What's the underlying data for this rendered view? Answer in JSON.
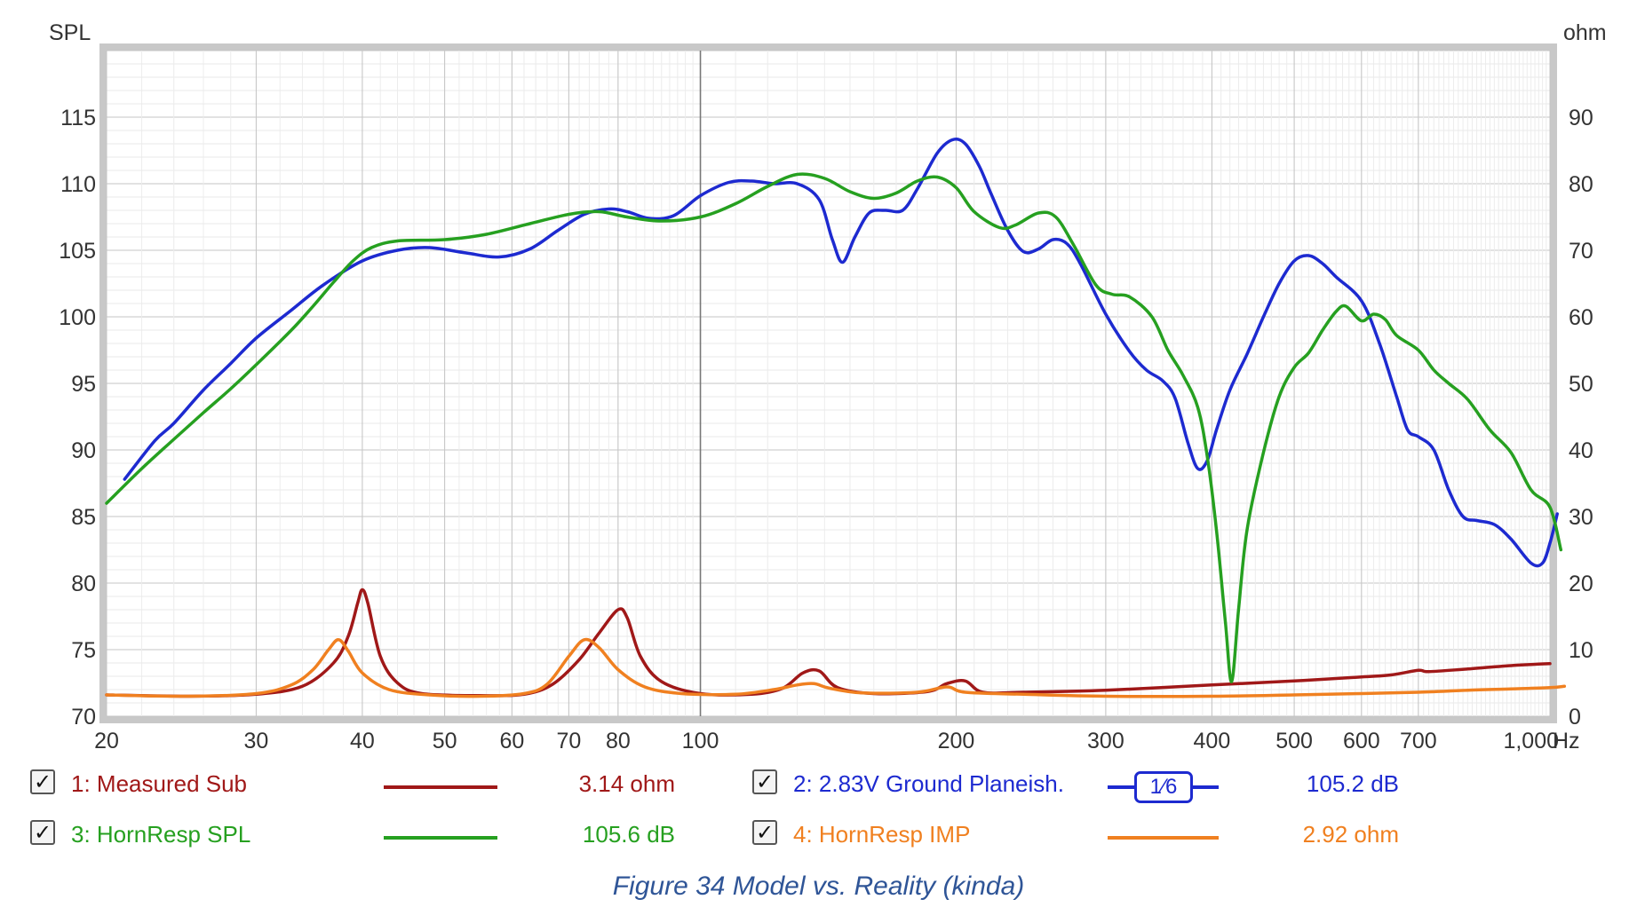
{
  "chart_data": {
    "type": "line",
    "x_axis": {
      "unit_label": "Hz",
      "scale": "log",
      "range": [
        20,
        1000
      ],
      "ticks": [
        {
          "value": 20,
          "label": "20"
        },
        {
          "value": 30,
          "label": "30"
        },
        {
          "value": 40,
          "label": "40"
        },
        {
          "value": 50,
          "label": "50"
        },
        {
          "value": 60,
          "label": "60"
        },
        {
          "value": 70,
          "label": "70"
        },
        {
          "value": 80,
          "label": "80"
        },
        {
          "value": 100,
          "label": "100"
        },
        {
          "value": 200,
          "label": "200"
        },
        {
          "value": 300,
          "label": "300"
        },
        {
          "value": 400,
          "label": "400"
        },
        {
          "value": 500,
          "label": "500"
        },
        {
          "value": 600,
          "label": "600"
        },
        {
          "value": 700,
          "label": "700"
        },
        {
          "value": 1000,
          "label": "1,000"
        }
      ]
    },
    "y_left": {
      "label": "SPL",
      "range": [
        70,
        120
      ],
      "ticks": [
        {
          "value": 70,
          "label": "70"
        },
        {
          "value": 75,
          "label": "75"
        },
        {
          "value": 80,
          "label": "80"
        },
        {
          "value": 85,
          "label": "85"
        },
        {
          "value": 90,
          "label": "90"
        },
        {
          "value": 95,
          "label": "95"
        },
        {
          "value": 100,
          "label": "100"
        },
        {
          "value": 105,
          "label": "105"
        },
        {
          "value": 110,
          "label": "110"
        },
        {
          "value": 115,
          "label": "115"
        }
      ]
    },
    "y_right": {
      "label": "ohm",
      "range": [
        0,
        100
      ],
      "ticks": [
        {
          "value": 0,
          "label": "0"
        },
        {
          "value": 10,
          "label": "10"
        },
        {
          "value": 20,
          "label": "20"
        },
        {
          "value": 30,
          "label": "30"
        },
        {
          "value": 40,
          "label": "40"
        },
        {
          "value": 50,
          "label": "50"
        },
        {
          "value": 60,
          "label": "60"
        },
        {
          "value": 70,
          "label": "70"
        },
        {
          "value": 80,
          "label": "80"
        },
        {
          "value": 90,
          "label": "90"
        }
      ]
    },
    "grid": true,
    "series": [
      {
        "name": "1: Measured Sub",
        "axis": "right",
        "color": "#a01818",
        "points": [
          [
            20,
            3.2
          ],
          [
            25,
            3.0
          ],
          [
            30,
            3.3
          ],
          [
            34,
            4.5
          ],
          [
            37,
            8
          ],
          [
            38.5,
            12
          ],
          [
            39.5,
            17
          ],
          [
            40,
            19
          ],
          [
            40.6,
            17
          ],
          [
            42,
            9
          ],
          [
            44,
            5
          ],
          [
            47,
            3.4
          ],
          [
            55,
            3.1
          ],
          [
            62,
            3.3
          ],
          [
            67,
            4.8
          ],
          [
            72,
            8.5
          ],
          [
            76,
            12.5
          ],
          [
            80,
            16
          ],
          [
            82,
            14.8
          ],
          [
            85,
            9
          ],
          [
            90,
            5.2
          ],
          [
            100,
            3.4
          ],
          [
            115,
            3.3
          ],
          [
            125,
            4.2
          ],
          [
            132,
            6.5
          ],
          [
            138,
            6.8
          ],
          [
            145,
            4.3
          ],
          [
            160,
            3.4
          ],
          [
            185,
            3.7
          ],
          [
            195,
            4.9
          ],
          [
            205,
            5.3
          ],
          [
            215,
            3.6
          ],
          [
            240,
            3.6
          ],
          [
            300,
            3.9
          ],
          [
            400,
            4.7
          ],
          [
            500,
            5.3
          ],
          [
            600,
            5.9
          ],
          [
            650,
            6.2
          ],
          [
            700,
            6.9
          ],
          [
            720,
            6.7
          ],
          [
            800,
            7.1
          ],
          [
            900,
            7.6
          ],
          [
            1000,
            7.9
          ]
        ]
      },
      {
        "name": "2: 2.83V Ground Planeish.",
        "axis": "left",
        "color": "#1d2ad0",
        "points": [
          [
            21,
            87.8
          ],
          [
            22.8,
            90.7
          ],
          [
            24,
            92
          ],
          [
            26,
            94.5
          ],
          [
            28,
            96.5
          ],
          [
            30,
            98.4
          ],
          [
            33,
            100.5
          ],
          [
            36,
            102.4
          ],
          [
            40,
            104.2
          ],
          [
            44,
            105
          ],
          [
            48,
            105.2
          ],
          [
            53,
            104.8
          ],
          [
            58,
            104.5
          ],
          [
            63,
            105.1
          ],
          [
            68,
            106.5
          ],
          [
            73,
            107.7
          ],
          [
            78,
            108.1
          ],
          [
            82,
            107.9
          ],
          [
            87,
            107.4
          ],
          [
            93,
            107.6
          ],
          [
            100,
            109.1
          ],
          [
            108,
            110.1
          ],
          [
            115,
            110.2
          ],
          [
            122,
            110
          ],
          [
            130,
            110
          ],
          [
            138,
            108.8
          ],
          [
            143,
            105.8
          ],
          [
            147,
            104.1
          ],
          [
            152,
            106
          ],
          [
            158,
            107.8
          ],
          [
            165,
            108
          ],
          [
            173,
            108
          ],
          [
            180,
            109.6
          ],
          [
            190,
            112.3
          ],
          [
            198,
            113.3
          ],
          [
            205,
            113
          ],
          [
            213,
            111.3
          ],
          [
            220,
            109.2
          ],
          [
            230,
            106.5
          ],
          [
            240,
            104.9
          ],
          [
            250,
            105.1
          ],
          [
            260,
            105.8
          ],
          [
            270,
            105.5
          ],
          [
            280,
            104
          ],
          [
            300,
            100.2
          ],
          [
            320,
            97.4
          ],
          [
            335,
            96
          ],
          [
            350,
            95.2
          ],
          [
            362,
            93.9
          ],
          [
            375,
            90.5
          ],
          [
            385,
            88.6
          ],
          [
            395,
            89.2
          ],
          [
            405,
            91.5
          ],
          [
            420,
            94.5
          ],
          [
            440,
            97.2
          ],
          [
            460,
            100
          ],
          [
            480,
            102.5
          ],
          [
            500,
            104.2
          ],
          [
            520,
            104.6
          ],
          [
            540,
            104
          ],
          [
            560,
            103
          ],
          [
            600,
            101.2
          ],
          [
            630,
            98
          ],
          [
            660,
            94
          ],
          [
            680,
            91.5
          ],
          [
            700,
            91
          ],
          [
            730,
            90
          ],
          [
            760,
            87
          ],
          [
            790,
            85
          ],
          [
            820,
            84.7
          ],
          [
            860,
            84.4
          ],
          [
            900,
            83.3
          ],
          [
            950,
            81.5
          ],
          [
            980,
            81.5
          ],
          [
            1000,
            83
          ],
          [
            1020,
            85.2
          ]
        ]
      },
      {
        "name": "3: HornResp SPL",
        "axis": "left",
        "color": "#26a020",
        "points": [
          [
            20,
            86
          ],
          [
            22,
            88.6
          ],
          [
            24,
            90.8
          ],
          [
            26,
            92.8
          ],
          [
            28,
            94.6
          ],
          [
            30,
            96.4
          ],
          [
            33,
            99
          ],
          [
            35,
            100.8
          ],
          [
            37,
            102.6
          ],
          [
            39,
            104.2
          ],
          [
            41,
            105.2
          ],
          [
            44,
            105.7
          ],
          [
            50,
            105.8
          ],
          [
            56,
            106.2
          ],
          [
            63,
            107
          ],
          [
            70,
            107.7
          ],
          [
            76,
            107.9
          ],
          [
            82,
            107.5
          ],
          [
            90,
            107.2
          ],
          [
            100,
            107.5
          ],
          [
            110,
            108.5
          ],
          [
            120,
            109.8
          ],
          [
            130,
            110.7
          ],
          [
            140,
            110.4
          ],
          [
            150,
            109.4
          ],
          [
            160,
            108.9
          ],
          [
            170,
            109.3
          ],
          [
            180,
            110.2
          ],
          [
            190,
            110.5
          ],
          [
            200,
            109.7
          ],
          [
            210,
            107.9
          ],
          [
            225,
            106.7
          ],
          [
            235,
            106.9
          ],
          [
            250,
            107.8
          ],
          [
            262,
            107.5
          ],
          [
            275,
            105.4
          ],
          [
            292,
            102.4
          ],
          [
            305,
            101.7
          ],
          [
            320,
            101.5
          ],
          [
            340,
            100
          ],
          [
            355,
            97.5
          ],
          [
            370,
            95.6
          ],
          [
            385,
            93.2
          ],
          [
            395,
            89.5
          ],
          [
            405,
            84
          ],
          [
            415,
            77
          ],
          [
            422,
            72.6
          ],
          [
            430,
            78
          ],
          [
            440,
            84
          ],
          [
            460,
            89.8
          ],
          [
            480,
            94
          ],
          [
            500,
            96.2
          ],
          [
            520,
            97.3
          ],
          [
            540,
            99
          ],
          [
            560,
            100.4
          ],
          [
            575,
            100.8
          ],
          [
            600,
            99.7
          ],
          [
            620,
            100.2
          ],
          [
            640,
            99.8
          ],
          [
            660,
            98.6
          ],
          [
            700,
            97.5
          ],
          [
            730,
            96
          ],
          [
            760,
            95
          ],
          [
            800,
            93.8
          ],
          [
            850,
            91.5
          ],
          [
            900,
            89.8
          ],
          [
            950,
            87
          ],
          [
            1000,
            85.7
          ],
          [
            1030,
            82.5
          ]
        ]
      },
      {
        "name": "4: HornResp IMP",
        "axis": "right",
        "color": "#f08020",
        "points": [
          [
            20,
            3.2
          ],
          [
            25,
            3.0
          ],
          [
            30,
            3.4
          ],
          [
            33,
            4.7
          ],
          [
            35,
            7
          ],
          [
            36.5,
            10
          ],
          [
            37.5,
            11.5
          ],
          [
            38.5,
            9.8
          ],
          [
            40,
            6.5
          ],
          [
            43,
            4.0
          ],
          [
            48,
            3.2
          ],
          [
            55,
            3.0
          ],
          [
            62,
            3.4
          ],
          [
            66,
            4.8
          ],
          [
            70,
            9
          ],
          [
            73,
            11.5
          ],
          [
            76,
            10.3
          ],
          [
            80,
            7
          ],
          [
            86,
            4.4
          ],
          [
            95,
            3.4
          ],
          [
            110,
            3.3
          ],
          [
            122,
            4.0
          ],
          [
            130,
            4.7
          ],
          [
            136,
            4.9
          ],
          [
            142,
            4.2
          ],
          [
            155,
            3.5
          ],
          [
            180,
            3.6
          ],
          [
            195,
            4.4
          ],
          [
            205,
            3.6
          ],
          [
            240,
            3.3
          ],
          [
            300,
            3.0
          ],
          [
            400,
            3.0
          ],
          [
            500,
            3.2
          ],
          [
            600,
            3.4
          ],
          [
            700,
            3.6
          ],
          [
            800,
            3.9
          ],
          [
            900,
            4.1
          ],
          [
            1000,
            4.3
          ],
          [
            1040,
            4.5
          ]
        ]
      }
    ]
  },
  "legend": {
    "items": [
      {
        "checked": "✓",
        "label": "1: Measured Sub",
        "value": "3.14 ohm",
        "color": "#a01818"
      },
      {
        "checked": "✓",
        "label": "2: 2.83V Ground Planeish.",
        "value": "105.2 dB",
        "color": "#1d2ad0",
        "smoothing": "1⁄6"
      },
      {
        "checked": "✓",
        "label": "3: HornResp SPL",
        "value": "105.6 dB",
        "color": "#26a020"
      },
      {
        "checked": "✓",
        "label": "4: HornResp IMP",
        "value": "2.92 ohm",
        "color": "#f08020"
      }
    ]
  },
  "caption": "Figure 34 Model vs. Reality (kinda)"
}
